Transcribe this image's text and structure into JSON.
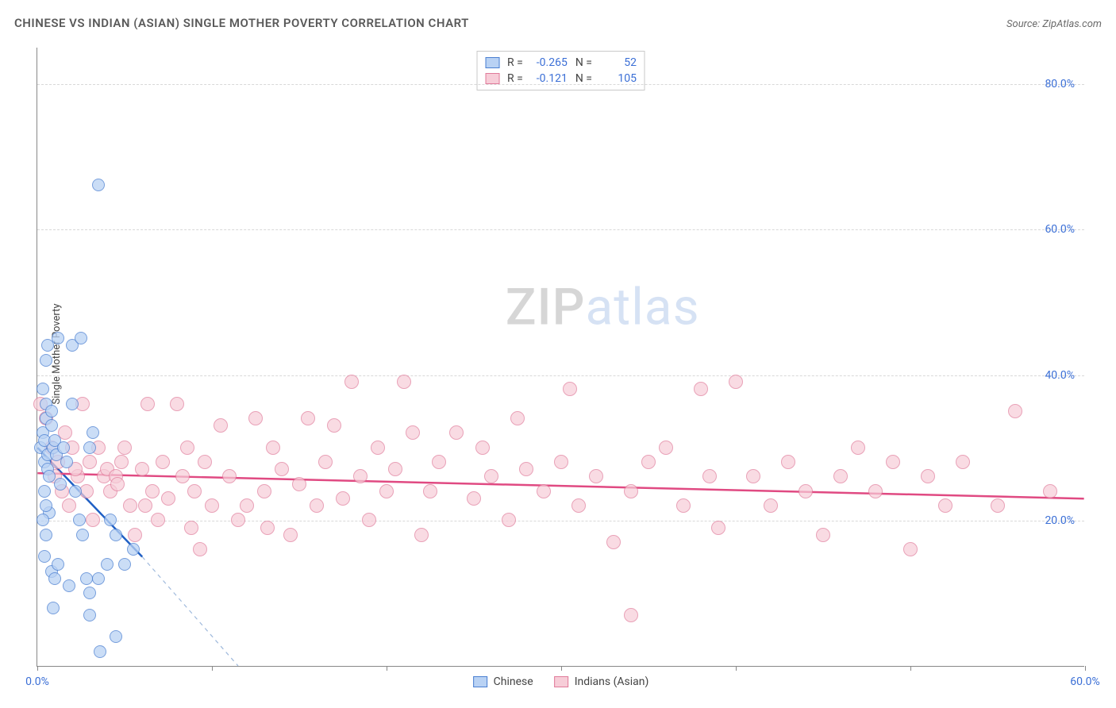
{
  "header": {
    "title": "CHINESE VS INDIAN (ASIAN) SINGLE MOTHER POVERTY CORRELATION CHART",
    "source": "Source: ZipAtlas.com"
  },
  "axes": {
    "ylabel": "Single Mother Poverty",
    "xlim": [
      0,
      60
    ],
    "ylim": [
      0,
      85
    ],
    "xtick_values": [
      0,
      10,
      20,
      30,
      40,
      50,
      60
    ],
    "xtick_labels": [
      "0.0%",
      "",
      "",
      "",
      "",
      "",
      "60.0%"
    ],
    "ytick_values": [
      20,
      40,
      60,
      80
    ],
    "ytick_labels": [
      "20.0%",
      "40.0%",
      "60.0%",
      "80.0%"
    ],
    "grid_color": "#d8d8d8",
    "axis_color": "#888888",
    "tick_label_color": "#3b6fd6",
    "label_fontsize": 13
  },
  "series": {
    "chinese": {
      "label": "Chinese",
      "marker_fill": "#b9d2f4",
      "marker_stroke": "#4a7fd1",
      "marker_radius": 8,
      "marker_opacity": 0.75,
      "trend_color": "#1f5fc4",
      "trend_width": 2.5,
      "trend_dash_color": "#9fb9dc",
      "R": "-0.265",
      "N": "52",
      "trendline": {
        "x1": 0,
        "y1": 30,
        "x2": 6,
        "y2": 15,
        "ext_x2": 11.5,
        "ext_y2": 0
      },
      "points": [
        [
          0.2,
          30
        ],
        [
          0.3,
          32
        ],
        [
          0.4,
          28
        ],
        [
          0.5,
          34
        ],
        [
          0.4,
          31
        ],
        [
          0.6,
          29
        ],
        [
          0.5,
          36
        ],
        [
          0.8,
          33
        ],
        [
          0.6,
          27
        ],
        [
          0.3,
          38
        ],
        [
          0.7,
          26
        ],
        [
          0.4,
          24
        ],
        [
          0.9,
          30
        ],
        [
          0.5,
          42
        ],
        [
          0.6,
          44
        ],
        [
          1.0,
          31
        ],
        [
          1.1,
          29
        ],
        [
          0.7,
          21
        ],
        [
          1.3,
          25
        ],
        [
          0.5,
          18
        ],
        [
          0.4,
          15
        ],
        [
          0.8,
          13
        ],
        [
          1.0,
          12
        ],
        [
          1.2,
          14
        ],
        [
          0.3,
          20
        ],
        [
          0.5,
          22
        ],
        [
          0.8,
          35
        ],
        [
          1.5,
          30
        ],
        [
          1.7,
          28
        ],
        [
          2.0,
          36
        ],
        [
          2.2,
          24
        ],
        [
          2.4,
          20
        ],
        [
          2.6,
          18
        ],
        [
          3.0,
          30
        ],
        [
          3.2,
          32
        ],
        [
          1.2,
          45
        ],
        [
          2.0,
          44
        ],
        [
          2.5,
          45
        ],
        [
          3.0,
          10
        ],
        [
          3.5,
          12
        ],
        [
          4.0,
          14
        ],
        [
          4.2,
          20
        ],
        [
          4.5,
          18
        ],
        [
          3.5,
          66
        ],
        [
          5.0,
          14
        ],
        [
          5.5,
          16
        ],
        [
          4.5,
          4
        ],
        [
          3.0,
          7
        ],
        [
          0.9,
          8
        ],
        [
          1.8,
          11
        ],
        [
          2.8,
          12
        ],
        [
          3.6,
          2
        ]
      ]
    },
    "indian": {
      "label": "Indians (Asian)",
      "marker_fill": "#f7cdd8",
      "marker_stroke": "#e07a9a",
      "marker_radius": 9,
      "marker_opacity": 0.7,
      "trend_color": "#e04a82",
      "trend_width": 2.5,
      "R": "-0.121",
      "N": "105",
      "trendline": {
        "x1": 0,
        "y1": 26.5,
        "x2": 60,
        "y2": 23
      },
      "points": [
        [
          0.2,
          36
        ],
        [
          0.5,
          34
        ],
        [
          0.8,
          30
        ],
        [
          1.0,
          26
        ],
        [
          1.2,
          28
        ],
        [
          1.4,
          24
        ],
        [
          1.6,
          32
        ],
        [
          1.8,
          22
        ],
        [
          2.0,
          30
        ],
        [
          2.3,
          26
        ],
        [
          2.6,
          36
        ],
        [
          2.8,
          24
        ],
        [
          3.0,
          28
        ],
        [
          3.2,
          20
        ],
        [
          3.5,
          30
        ],
        [
          3.8,
          26
        ],
        [
          4.0,
          27
        ],
        [
          4.2,
          24
        ],
        [
          4.5,
          26
        ],
        [
          4.8,
          28
        ],
        [
          5.0,
          30
        ],
        [
          5.3,
          22
        ],
        [
          5.6,
          18
        ],
        [
          6.0,
          27
        ],
        [
          6.3,
          36
        ],
        [
          6.6,
          24
        ],
        [
          6.9,
          20
        ],
        [
          7.2,
          28
        ],
        [
          7.5,
          23
        ],
        [
          8.0,
          36
        ],
        [
          8.3,
          26
        ],
        [
          8.6,
          30
        ],
        [
          9.0,
          24
        ],
        [
          9.3,
          16
        ],
        [
          9.6,
          28
        ],
        [
          10.0,
          22
        ],
        [
          10.5,
          33
        ],
        [
          11.0,
          26
        ],
        [
          11.5,
          20
        ],
        [
          12.0,
          22
        ],
        [
          12.5,
          34
        ],
        [
          13.0,
          24
        ],
        [
          13.5,
          30
        ],
        [
          14.0,
          27
        ],
        [
          14.5,
          18
        ],
        [
          15.0,
          25
        ],
        [
          15.5,
          34
        ],
        [
          16.0,
          22
        ],
        [
          16.5,
          28
        ],
        [
          17.0,
          33
        ],
        [
          17.5,
          23
        ],
        [
          18.0,
          39
        ],
        [
          18.5,
          26
        ],
        [
          19.0,
          20
        ],
        [
          19.5,
          30
        ],
        [
          20.0,
          24
        ],
        [
          20.5,
          27
        ],
        [
          21.0,
          39
        ],
        [
          21.5,
          32
        ],
        [
          22.0,
          18
        ],
        [
          22.5,
          24
        ],
        [
          23.0,
          28
        ],
        [
          24.0,
          32
        ],
        [
          25.0,
          23
        ],
        [
          25.5,
          30
        ],
        [
          26.0,
          26
        ],
        [
          27.0,
          20
        ],
        [
          27.5,
          34
        ],
        [
          28.0,
          27
        ],
        [
          29.0,
          24
        ],
        [
          30.0,
          28
        ],
        [
          30.5,
          38
        ],
        [
          31.0,
          22
        ],
        [
          32.0,
          26
        ],
        [
          33.0,
          17
        ],
        [
          34.0,
          24
        ],
        [
          35.0,
          28
        ],
        [
          36.0,
          30
        ],
        [
          37.0,
          22
        ],
        [
          38.0,
          38
        ],
        [
          38.5,
          26
        ],
        [
          39.0,
          19
        ],
        [
          40.0,
          39
        ],
        [
          41.0,
          26
        ],
        [
          42.0,
          22
        ],
        [
          43.0,
          28
        ],
        [
          44.0,
          24
        ],
        [
          45.0,
          18
        ],
        [
          46.0,
          26
        ],
        [
          47.0,
          30
        ],
        [
          48.0,
          24
        ],
        [
          49.0,
          28
        ],
        [
          50.0,
          16
        ],
        [
          51.0,
          26
        ],
        [
          52.0,
          22
        ],
        [
          53.0,
          28
        ],
        [
          55.0,
          22
        ],
        [
          56.0,
          35
        ],
        [
          58.0,
          24
        ],
        [
          34.0,
          7
        ],
        [
          2.2,
          27
        ],
        [
          4.6,
          25
        ],
        [
          6.2,
          22
        ],
        [
          8.8,
          19
        ],
        [
          13.2,
          19
        ]
      ]
    }
  },
  "legend": {
    "chinese_swatch_fill": "#b9d2f4",
    "chinese_swatch_stroke": "#4a7fd1",
    "indian_swatch_fill": "#f7cdd8",
    "indian_swatch_stroke": "#e07a9a"
  },
  "watermark": {
    "zip": "ZIP",
    "atlas": "atlas"
  },
  "background_color": "#ffffff"
}
